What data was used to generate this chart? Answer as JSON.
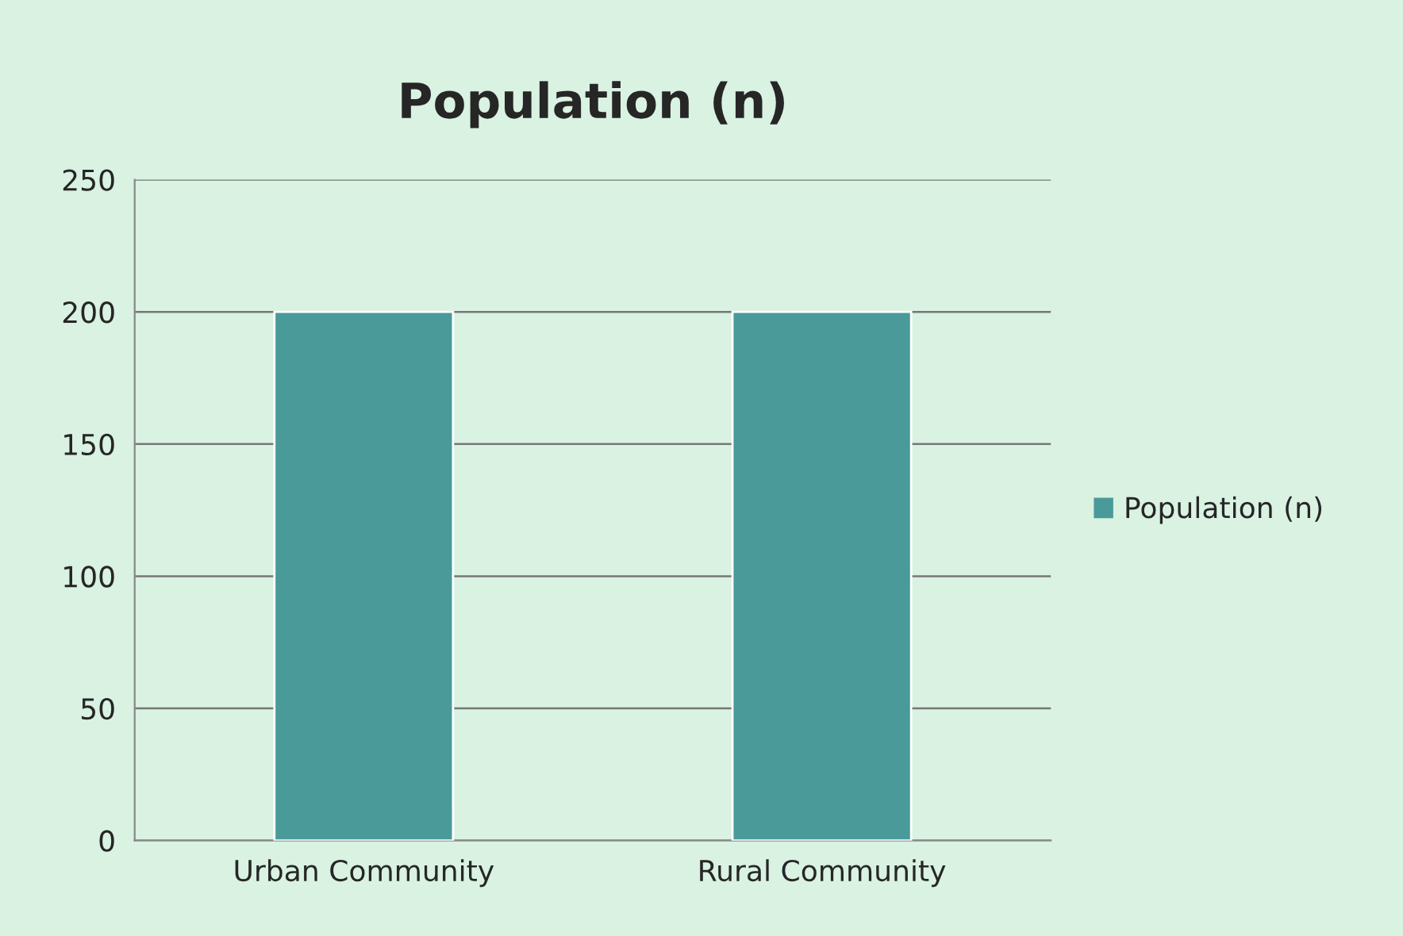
{
  "chart_data": {
    "type": "bar",
    "title": "Population (n)",
    "categories": [
      "Urban Community",
      "Rural Community"
    ],
    "series": [
      {
        "name": "Population (n)",
        "color": "#4a9a9a",
        "values": [
          200,
          200
        ]
      }
    ],
    "ylim": [
      0,
      250
    ],
    "yticks": [
      0,
      50,
      100,
      150,
      200,
      250
    ],
    "grid": "y",
    "legend": "right"
  }
}
